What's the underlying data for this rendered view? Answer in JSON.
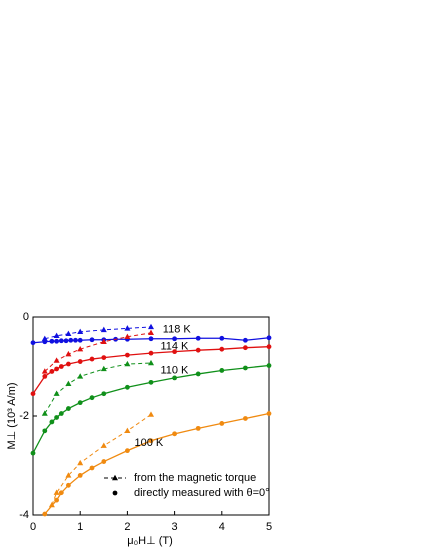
{
  "chart_data": {
    "type": "line",
    "xlabel": "μ₀H⊥ (T)",
    "ylabel": "M⊥ (10³ A/m)",
    "xlim": [
      0,
      5
    ],
    "ylim": [
      -4,
      0
    ],
    "xticks": [
      0,
      1,
      2,
      3,
      4,
      5
    ],
    "yticks": [
      -4,
      -2,
      0
    ],
    "legend": [
      "from the magnetic torque",
      "directly measured with θ=0°"
    ],
    "series": [
      {
        "name": "118 K",
        "color": "#1010e0",
        "x": [
          0,
          0.25,
          0.4,
          0.5,
          0.6,
          0.7,
          0.8,
          0.9,
          1,
          1.25,
          1.5,
          1.75,
          2,
          2.5,
          3,
          3.5,
          4,
          4.5,
          5
        ],
        "values": [
          -0.52,
          -0.5,
          -0.49,
          -0.49,
          -0.48,
          -0.48,
          -0.47,
          -0.47,
          -0.47,
          -0.46,
          -0.46,
          -0.45,
          -0.45,
          -0.44,
          -0.44,
          -0.43,
          -0.43,
          -0.47,
          -0.42
        ],
        "torque_x": [
          0.25,
          0.5,
          0.75,
          1,
          1.5,
          2,
          2.5
        ],
        "torque_values": [
          -0.44,
          -0.38,
          -0.34,
          -0.3,
          -0.26,
          -0.23,
          -0.2
        ]
      },
      {
        "name": "114 K",
        "color": "#e01010",
        "x": [
          0,
          0.25,
          0.4,
          0.5,
          0.6,
          0.75,
          1,
          1.25,
          1.5,
          2,
          2.5,
          3,
          3.5,
          4,
          4.5,
          5
        ],
        "values": [
          -1.55,
          -1.2,
          -1.1,
          -1.05,
          -1.0,
          -0.95,
          -0.9,
          -0.85,
          -0.82,
          -0.77,
          -0.73,
          -0.7,
          -0.67,
          -0.65,
          -0.62,
          -0.6
        ],
        "torque_x": [
          0.25,
          0.5,
          0.75,
          1,
          1.5,
          2,
          2.5
        ],
        "torque_values": [
          -1.1,
          -0.88,
          -0.75,
          -0.65,
          -0.5,
          -0.4,
          -0.32
        ]
      },
      {
        "name": "110 K",
        "color": "#10901a",
        "x": [
          0,
          0.25,
          0.4,
          0.5,
          0.6,
          0.75,
          1,
          1.25,
          1.5,
          2,
          2.5,
          3,
          3.5,
          4,
          4.5,
          5
        ],
        "values": [
          -2.75,
          -2.3,
          -2.12,
          -2.03,
          -1.95,
          -1.85,
          -1.73,
          -1.63,
          -1.55,
          -1.42,
          -1.32,
          -1.23,
          -1.15,
          -1.08,
          -1.03,
          -0.98
        ],
        "torque_x": [
          0.25,
          0.5,
          0.75,
          1,
          1.5,
          2,
          2.5
        ],
        "torque_values": [
          -1.95,
          -1.55,
          -1.35,
          -1.2,
          -1.05,
          -0.95,
          -0.93
        ]
      },
      {
        "name": "100 K",
        "color": "#f08a10",
        "x": [
          0.25,
          0.5,
          0.6,
          0.75,
          1,
          1.25,
          1.5,
          2,
          2.5,
          3,
          3.5,
          4,
          4.5,
          5
        ],
        "values": [
          -3.98,
          -3.7,
          -3.55,
          -3.4,
          -3.2,
          -3.05,
          -2.92,
          -2.7,
          -2.5,
          -2.36,
          -2.25,
          -2.15,
          -2.05,
          -1.95
        ],
        "torque_x": [
          0.4,
          0.5,
          0.75,
          1,
          1.5,
          2,
          2.5
        ],
        "torque_values": [
          -3.8,
          -3.55,
          -3.2,
          -2.95,
          -2.6,
          -2.3,
          -1.97
        ]
      }
    ]
  }
}
